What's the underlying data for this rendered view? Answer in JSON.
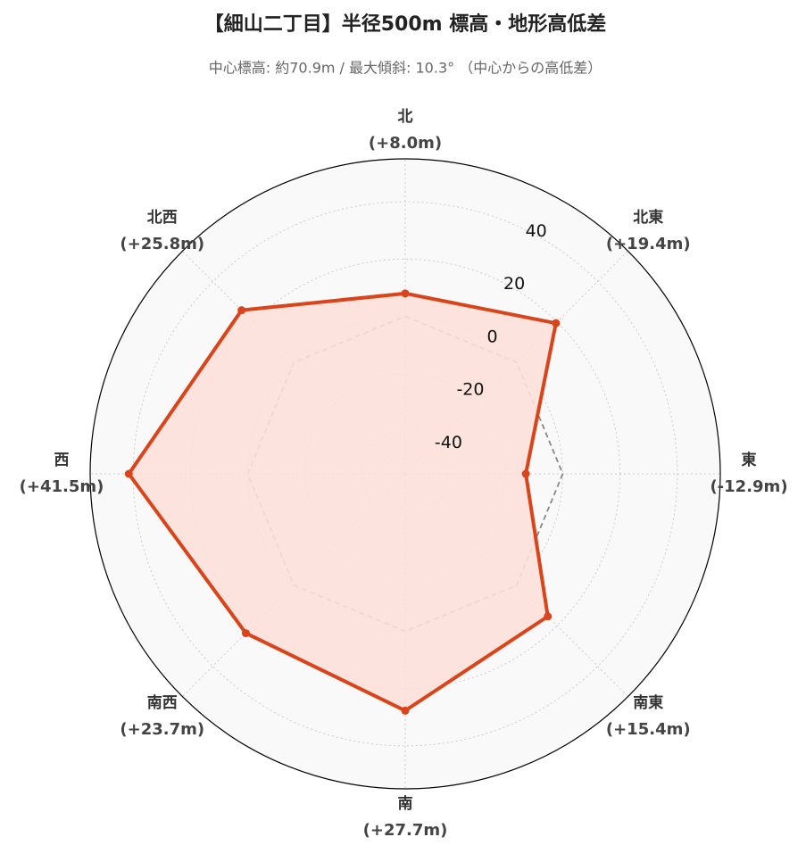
{
  "chart_data": {
    "type": "radar",
    "title": "【細山二丁目】半径500m 標高・地形高低差",
    "subtitle": "中心標高: 約70.9m / 最大傾斜: 10.3° （中心からの高低差）",
    "categories": [
      "北",
      "北東",
      "東",
      "南東",
      "南",
      "南西",
      "西",
      "北西"
    ],
    "values": [
      8.0,
      19.4,
      -12.9,
      15.4,
      27.7,
      23.7,
      41.5,
      25.8
    ],
    "value_labels": [
      "(+8.0m)",
      "(+19.4m)",
      "(-12.9m)",
      "(+15.4m)",
      "(+27.7m)",
      "(+23.7m)",
      "(+41.5m)",
      "(+25.8m)"
    ],
    "color": "#d9441a",
    "fill": "#fde0d9",
    "baseline": 0,
    "ylim": [
      -55,
      55
    ],
    "yticks": [
      -40,
      -20,
      0,
      20,
      40
    ],
    "grid": true
  }
}
